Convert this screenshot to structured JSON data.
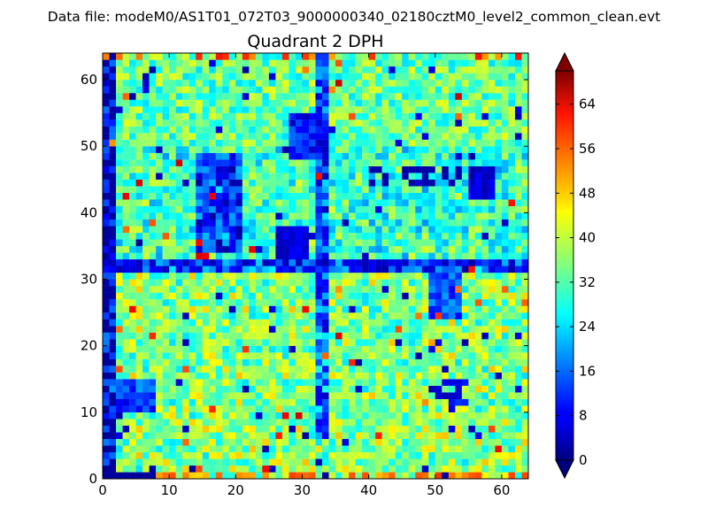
{
  "header": {
    "suptitle": "Data file: modeM0/AS1T01_072T03_9000000340_02180cztM0_level2_common_clean.evt"
  },
  "chart_data": {
    "type": "heatmap",
    "title": "Quadrant 2 DPH",
    "xlabel": "",
    "ylabel": "",
    "grid": {
      "cols": 64,
      "rows": 64
    },
    "xlim": [
      0,
      64
    ],
    "ylim": [
      0,
      64
    ],
    "x_ticks": [
      0,
      10,
      20,
      30,
      40,
      50,
      60
    ],
    "y_ticks": [
      0,
      10,
      20,
      30,
      40,
      50,
      60
    ],
    "colorbar": {
      "colormap": "jet",
      "vmin": 0,
      "vmax": 70,
      "extend": "both",
      "ticks": [
        0,
        8,
        16,
        24,
        32,
        40,
        48,
        56,
        64
      ]
    },
    "cell_stats": {
      "typical_counts": [
        24,
        40
      ],
      "low_count_regions": "dark blue streaks near x=0, x=32 column, y=32 row and scattered patches",
      "high_count_pixels": "sparse orange/red cells, mainly along the top and bottom edges"
    }
  }
}
